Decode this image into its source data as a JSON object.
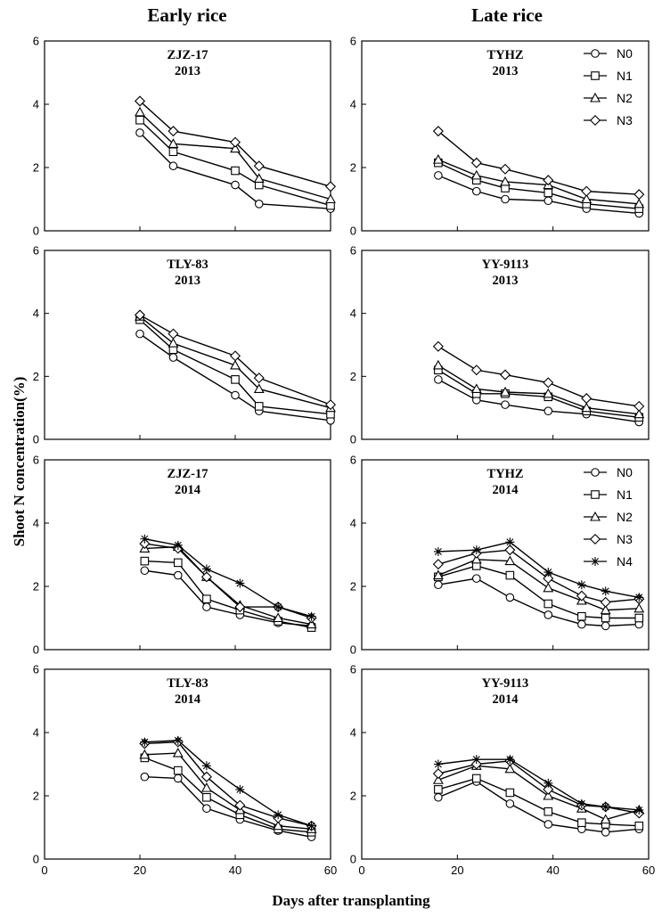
{
  "figure": {
    "col_titles": [
      "Early rice",
      "Late rice"
    ],
    "xlabel": "Days after transplanting",
    "ylabel": "Shoot N  concentration(%)",
    "x_ticks": [
      "0",
      "20",
      "40",
      "60"
    ],
    "y_ticks": [
      "0",
      "2",
      "4",
      "6"
    ]
  },
  "chart_data": [
    {
      "type": "line",
      "title": [
        "ZJZ-17",
        "2013"
      ],
      "xlim": [
        0,
        60
      ],
      "ylim": [
        0,
        6
      ],
      "x": [
        20,
        27,
        40,
        45,
        60
      ],
      "series": [
        {
          "name": "N0",
          "marker": "circle",
          "values": [
            3.1,
            2.05,
            1.45,
            0.85,
            0.7
          ]
        },
        {
          "name": "N1",
          "marker": "square",
          "values": [
            3.5,
            2.5,
            1.9,
            1.45,
            0.8
          ]
        },
        {
          "name": "N2",
          "marker": "triangle",
          "values": [
            3.75,
            2.75,
            2.6,
            1.65,
            1.0
          ]
        },
        {
          "name": "N3",
          "marker": "diamond",
          "values": [
            4.1,
            3.15,
            2.8,
            2.05,
            1.4
          ]
        }
      ]
    },
    {
      "type": "line",
      "title": [
        "TYHZ",
        "2013"
      ],
      "xlim": [
        0,
        60
      ],
      "ylim": [
        0,
        6
      ],
      "legend": "top-right",
      "x": [
        16,
        24,
        30,
        39,
        47,
        58
      ],
      "series": [
        {
          "name": "N0",
          "marker": "circle",
          "values": [
            1.75,
            1.25,
            1.0,
            0.95,
            0.7,
            0.55
          ]
        },
        {
          "name": "N1",
          "marker": "square",
          "values": [
            2.15,
            1.6,
            1.35,
            1.2,
            0.85,
            0.7
          ]
        },
        {
          "name": "N2",
          "marker": "triangle",
          "values": [
            2.25,
            1.75,
            1.55,
            1.45,
            1.0,
            0.85
          ]
        },
        {
          "name": "N3",
          "marker": "diamond",
          "values": [
            3.15,
            2.15,
            1.95,
            1.6,
            1.25,
            1.15
          ]
        }
      ]
    },
    {
      "type": "line",
      "title": [
        "TLY-83",
        "2013"
      ],
      "xlim": [
        0,
        60
      ],
      "ylim": [
        0,
        6
      ],
      "x": [
        20,
        27,
        40,
        45,
        60
      ],
      "series": [
        {
          "name": "N0",
          "marker": "circle",
          "values": [
            3.35,
            2.6,
            1.4,
            0.9,
            0.6
          ]
        },
        {
          "name": "N1",
          "marker": "square",
          "values": [
            3.8,
            2.85,
            1.9,
            1.05,
            0.8
          ]
        },
        {
          "name": "N2",
          "marker": "triangle",
          "values": [
            3.9,
            3.05,
            2.35,
            1.6,
            1.0
          ]
        },
        {
          "name": "N3",
          "marker": "diamond",
          "values": [
            3.95,
            3.35,
            2.65,
            1.95,
            1.1
          ]
        }
      ]
    },
    {
      "type": "line",
      "title": [
        "YY-9113",
        "2013"
      ],
      "xlim": [
        0,
        60
      ],
      "ylim": [
        0,
        6
      ],
      "x": [
        16,
        24,
        30,
        39,
        47,
        58
      ],
      "series": [
        {
          "name": "N0",
          "marker": "circle",
          "values": [
            1.9,
            1.25,
            1.1,
            0.9,
            0.8,
            0.55
          ]
        },
        {
          "name": "N1",
          "marker": "square",
          "values": [
            2.2,
            1.45,
            1.45,
            1.35,
            0.9,
            0.7
          ]
        },
        {
          "name": "N2",
          "marker": "triangle",
          "values": [
            2.35,
            1.6,
            1.5,
            1.45,
            1.0,
            0.8
          ]
        },
        {
          "name": "N3",
          "marker": "diamond",
          "values": [
            2.95,
            2.2,
            2.05,
            1.8,
            1.3,
            1.05
          ]
        }
      ]
    },
    {
      "type": "line",
      "title": [
        "ZJZ-17",
        "2014"
      ],
      "xlim": [
        0,
        60
      ],
      "ylim": [
        0,
        6
      ],
      "x": [
        21,
        28,
        34,
        41,
        49,
        56
      ],
      "series": [
        {
          "name": "N0",
          "marker": "circle",
          "values": [
            2.5,
            2.35,
            1.35,
            1.1,
            0.85,
            0.75
          ]
        },
        {
          "name": "N1",
          "marker": "square",
          "values": [
            2.8,
            2.75,
            1.6,
            1.25,
            0.9,
            0.7
          ]
        },
        {
          "name": "N2",
          "marker": "triangle",
          "values": [
            3.2,
            3.25,
            2.3,
            1.4,
            1.0,
            0.8
          ]
        },
        {
          "name": "N3",
          "marker": "diamond",
          "values": [
            3.35,
            3.2,
            2.3,
            1.35,
            1.35,
            1.0
          ]
        },
        {
          "name": "N4",
          "marker": "star",
          "values": [
            3.5,
            3.3,
            2.55,
            2.1,
            1.35,
            1.05
          ]
        }
      ]
    },
    {
      "type": "line",
      "title": [
        "TYHZ",
        "2014"
      ],
      "xlim": [
        0,
        60
      ],
      "ylim": [
        0,
        6
      ],
      "legend": "top-right",
      "x": [
        16,
        24,
        31,
        39,
        46,
        51,
        58
      ],
      "series": [
        {
          "name": "N0",
          "marker": "circle",
          "values": [
            2.05,
            2.25,
            1.65,
            1.1,
            0.8,
            0.75,
            0.8
          ]
        },
        {
          "name": "N1",
          "marker": "square",
          "values": [
            2.3,
            2.65,
            2.35,
            1.45,
            1.05,
            1.0,
            1.0
          ]
        },
        {
          "name": "N2",
          "marker": "triangle",
          "values": [
            2.35,
            2.85,
            2.8,
            1.95,
            1.55,
            1.25,
            1.3
          ]
        },
        {
          "name": "N3",
          "marker": "diamond",
          "values": [
            2.7,
            3.05,
            3.15,
            2.25,
            1.7,
            1.5,
            1.6
          ]
        },
        {
          "name": "N4",
          "marker": "star",
          "values": [
            3.1,
            3.15,
            3.4,
            2.45,
            2.05,
            1.85,
            1.65
          ]
        }
      ]
    },
    {
      "type": "line",
      "title": [
        "TLY-83",
        "2014"
      ],
      "xlim": [
        0,
        60
      ],
      "ylim": [
        0,
        6
      ],
      "x": [
        21,
        28,
        34,
        41,
        49,
        56
      ],
      "series": [
        {
          "name": "N0",
          "marker": "circle",
          "values": [
            2.6,
            2.55,
            1.6,
            1.25,
            0.9,
            0.7
          ]
        },
        {
          "name": "N1",
          "marker": "square",
          "values": [
            3.2,
            2.8,
            1.95,
            1.4,
            0.95,
            0.85
          ]
        },
        {
          "name": "N2",
          "marker": "triangle",
          "values": [
            3.3,
            3.35,
            2.25,
            1.55,
            1.05,
            0.95
          ]
        },
        {
          "name": "N3",
          "marker": "diamond",
          "values": [
            3.65,
            3.7,
            2.6,
            1.7,
            1.3,
            1.05
          ]
        },
        {
          "name": "N4",
          "marker": "star",
          "values": [
            3.7,
            3.75,
            2.95,
            2.2,
            1.4,
            1.05
          ]
        }
      ]
    },
    {
      "type": "line",
      "title": [
        "YY-9113",
        "2014"
      ],
      "xlim": [
        0,
        60
      ],
      "ylim": [
        0,
        6
      ],
      "x": [
        16,
        24,
        31,
        39,
        46,
        51,
        58
      ],
      "series": [
        {
          "name": "N0",
          "marker": "circle",
          "values": [
            1.95,
            2.45,
            1.75,
            1.1,
            0.95,
            0.85,
            0.95
          ]
        },
        {
          "name": "N1",
          "marker": "square",
          "values": [
            2.2,
            2.55,
            2.1,
            1.5,
            1.15,
            1.1,
            1.05
          ]
        },
        {
          "name": "N2",
          "marker": "triangle",
          "values": [
            2.5,
            2.95,
            2.85,
            2.0,
            1.6,
            1.25,
            1.55
          ]
        },
        {
          "name": "N3",
          "marker": "diamond",
          "values": [
            2.7,
            3.0,
            3.1,
            2.2,
            1.7,
            1.65,
            1.45
          ]
        },
        {
          "name": "N4",
          "marker": "star",
          "values": [
            3.0,
            3.15,
            3.15,
            2.4,
            1.75,
            1.65,
            1.55
          ]
        }
      ]
    }
  ]
}
